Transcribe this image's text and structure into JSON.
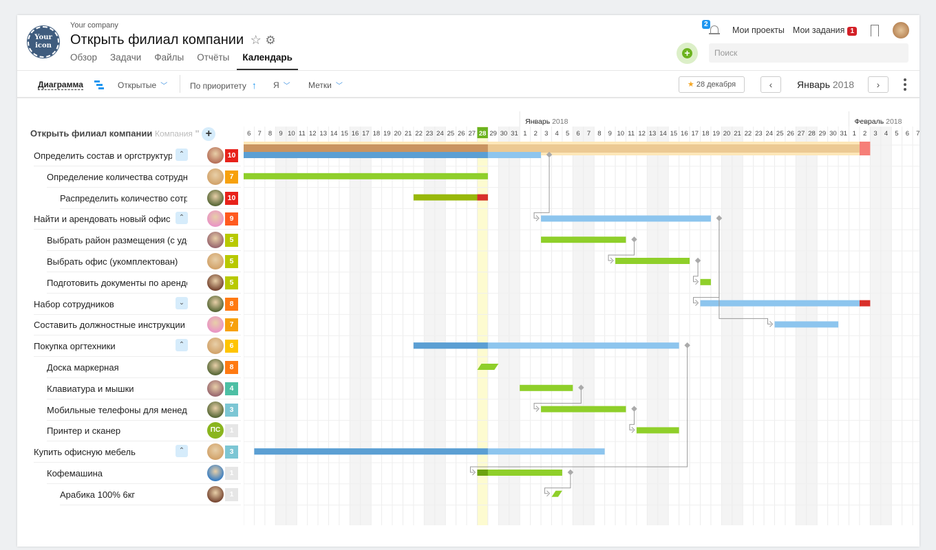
{
  "header": {
    "company": "Your company",
    "logo_text": "Your icon",
    "title": "Открыть филиал компании",
    "tabs": [
      {
        "label": "Обзор"
      },
      {
        "label": "Задачи"
      },
      {
        "label": "Файлы"
      },
      {
        "label": "Отчёты"
      },
      {
        "label": "Календарь",
        "active": true
      }
    ],
    "notifications_count": "2",
    "my_projects": "Мои проекты",
    "my_tasks": "Мои задания",
    "my_tasks_count": "1",
    "search_placeholder": "Поиск"
  },
  "toolbar": {
    "view": "Диаграмма",
    "filter": "Открытые",
    "sort": "По приоритету",
    "assignee": "Я",
    "tags": "Метки",
    "today_button": "28 декабря",
    "current_month": "Январь",
    "current_year": "2018"
  },
  "timeline": {
    "months": [
      {
        "name": "Январь",
        "year": "2018",
        "start_col": 26
      },
      {
        "name": "Февраль",
        "year": "2018",
        "start_col": 57
      }
    ],
    "days": [
      6,
      7,
      8,
      9,
      10,
      11,
      12,
      13,
      14,
      15,
      16,
      17,
      18,
      19,
      20,
      21,
      22,
      23,
      24,
      25,
      26,
      27,
      28,
      29,
      30,
      31,
      1,
      2,
      3,
      4,
      5,
      6,
      7,
      8,
      9,
      10,
      11,
      12,
      13,
      14,
      15,
      16,
      17,
      18,
      19,
      20,
      21,
      22,
      23,
      24,
      25,
      26,
      27,
      28,
      29,
      30,
      31,
      1,
      2,
      3,
      4,
      5,
      6,
      7
    ],
    "weekend_cols": [
      3,
      4,
      10,
      11,
      17,
      18,
      24,
      25,
      31,
      32,
      38,
      39,
      45,
      46,
      52,
      53,
      59,
      60
    ],
    "today_col": 22
  },
  "project": {
    "name": "Открыть филиал компании",
    "type": "Компания",
    "bar": {
      "start": 0,
      "end": 58,
      "done": 23,
      "overdue_end": 59
    }
  },
  "colors": {
    "blue": "#8dc5ee",
    "blue_done": "#5b9fd3",
    "green": "#8fcf2a",
    "green_done": "#6ca20f",
    "red": "#d9302a",
    "tan": "#ecc993",
    "tan_done": "#c99461"
  },
  "tasks": [
    {
      "name": "Определить состав и оргструктуру филиала",
      "level": 0,
      "toggle": "up",
      "avatar": "#b7715a",
      "priority": "10",
      "pcolor": "#e8221b",
      "bar": {
        "type": "blue",
        "start": 0,
        "end": 28,
        "done": 23
      }
    },
    {
      "name": "Определение количества сотрудников в отделах",
      "level": 1,
      "avatar": "#d2a46c",
      "priority": "7",
      "pcolor": "#f7a10d",
      "bar": {
        "type": "green",
        "start": 0,
        "end": 23
      }
    },
    {
      "name": "Распределить количество сотрудников по отделам",
      "level": 2,
      "avatar": "#5c6b3a",
      "priority": "10",
      "pcolor": "#e8221b",
      "bar": {
        "type": "olive",
        "start": 16,
        "end": 23,
        "overdue": 22
      }
    },
    {
      "name": "Найти и арендовать новый офис",
      "level": 0,
      "toggle": "up",
      "avatar": "#e996c4",
      "priority": "9",
      "pcolor": "#ff5a1f",
      "bar": {
        "type": "blue",
        "start": 28,
        "end": 44
      }
    },
    {
      "name": "Выбрать район размещения (с удобной транспортной доступностью)",
      "level": 1,
      "avatar": "#9b6a70",
      "priority": "5",
      "pcolor": "#b8c900",
      "bar": {
        "type": "green",
        "start": 28,
        "end": 36
      }
    },
    {
      "name": "Выбрать офис (укомплектован)",
      "level": 1,
      "avatar": "#d2a46c",
      "priority": "5",
      "pcolor": "#b8c900",
      "bar": {
        "type": "green",
        "start": 35,
        "end": 42
      }
    },
    {
      "name": "Подготовить документы по аренде офиса",
      "level": 1,
      "avatar": "#7a4a35",
      "priority": "5",
      "pcolor": "#b8c900",
      "bar": {
        "type": "green",
        "start": 43,
        "end": 44
      }
    },
    {
      "name": "Набор сотрудников",
      "level": 0,
      "toggle": "down",
      "avatar": "#5c6b3a",
      "priority": "8",
      "pcolor": "#ff7a12",
      "bar": {
        "type": "blue",
        "start": 43,
        "end": 58,
        "overdue_end": 59
      }
    },
    {
      "name": "Составить должностные инструкции",
      "level": 0,
      "avatar": "#e996c4",
      "priority": "7",
      "pcolor": "#f7a10d",
      "bar": {
        "type": "blue",
        "start": 50,
        "end": 56
      }
    },
    {
      "name": "Покупка оргтехники",
      "level": 0,
      "toggle": "up",
      "avatar": "#d2a46c",
      "priority": "6",
      "pcolor": "#ffc400",
      "bar": {
        "type": "blue",
        "start": 16,
        "end": 41,
        "done": 23
      }
    },
    {
      "name": "Доска маркерная",
      "level": 1,
      "avatar": "#5c6b3a",
      "priority": "8",
      "pcolor": "#ff7a12",
      "bar": {
        "type": "milestone",
        "start": 22,
        "end": 24
      }
    },
    {
      "name": "Клавиатура и мышки",
      "level": 1,
      "avatar": "#9b6a70",
      "priority": "4",
      "pcolor": "#4dbfa4",
      "bar": {
        "type": "green",
        "start": 26,
        "end": 31
      }
    },
    {
      "name": "Мобильные телефоны для менеджеров",
      "level": 1,
      "avatar": "#5c6b3a",
      "priority": "3",
      "pcolor": "#7cc6d4",
      "bar": {
        "type": "green",
        "start": 28,
        "end": 36
      }
    },
    {
      "name": "Принтер и сканер",
      "level": 1,
      "avatar": "#8ab51e",
      "avatar_text": "ПС",
      "priority": "1",
      "pcolor": "#e6e6e6",
      "bar": {
        "type": "green",
        "start": 37,
        "end": 41
      }
    },
    {
      "name": "Купить офисную мебель",
      "level": 0,
      "toggle": "up",
      "avatar": "#d2a46c",
      "priority": "3",
      "pcolor": "#7cc6d4",
      "bar": {
        "type": "blue",
        "start": 1,
        "end": 34,
        "done": 23
      }
    },
    {
      "name": "Кофемашина",
      "level": 1,
      "avatar": "#3d7fc1",
      "priority": "1",
      "pcolor": "#e6e6e6",
      "bar": {
        "type": "green",
        "start": 22,
        "end": 30,
        "done": 23
      }
    },
    {
      "name": "Арабика 100% 6кг",
      "level": 2,
      "avatar": "#7a4a35",
      "priority": "1",
      "pcolor": "#e6e6e6",
      "bar": {
        "type": "milestone",
        "start": 29,
        "end": 30
      }
    }
  ],
  "dependencies": [
    [
      0,
      3
    ],
    [
      4,
      5
    ],
    [
      5,
      6
    ],
    [
      3,
      7
    ],
    [
      3,
      8
    ],
    [
      11,
      12
    ],
    [
      12,
      13
    ],
    [
      9,
      15
    ],
    [
      15,
      16
    ]
  ]
}
